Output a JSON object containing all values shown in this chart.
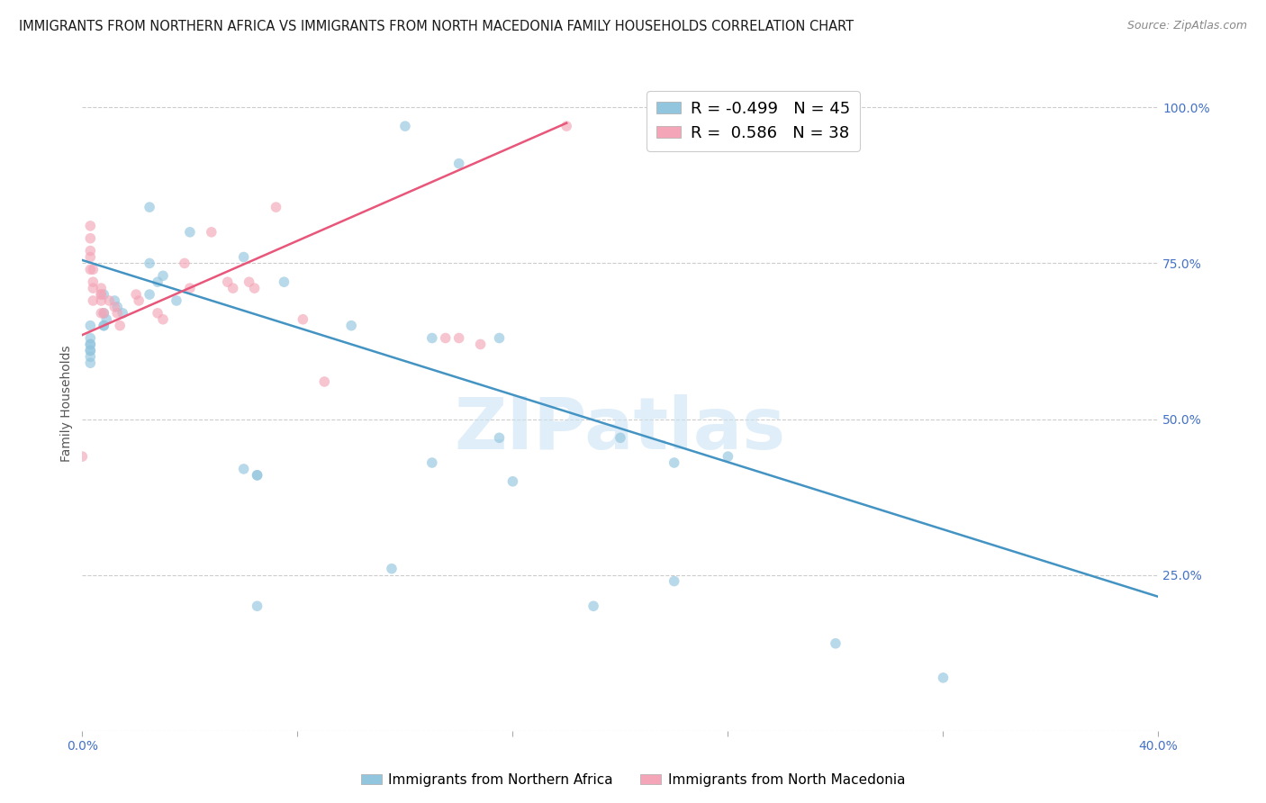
{
  "title": "IMMIGRANTS FROM NORTHERN AFRICA VS IMMIGRANTS FROM NORTH MACEDONIA FAMILY HOUSEHOLDS CORRELATION CHART",
  "source": "Source: ZipAtlas.com",
  "ylabel_label": "Family Households",
  "y_ticks": [
    0.0,
    0.25,
    0.5,
    0.75,
    1.0
  ],
  "y_tick_labels": [
    "",
    "25.0%",
    "50.0%",
    "75.0%",
    "100.0%"
  ],
  "xlim": [
    0.0,
    0.4
  ],
  "ylim": [
    0.0,
    1.05
  ],
  "legend_entry1": "R = -0.499   N = 45",
  "legend_entry2": "R =  0.586   N = 38",
  "scatter_color_blue": "#92c5de",
  "scatter_color_pink": "#f4a6b8",
  "line_color_blue": "#4393c3",
  "line_color_pink": "#e8567a",
  "background_color": "#ffffff",
  "watermark": "ZIPatlas",
  "legend_label1": "Immigrants from Northern Africa",
  "legend_label2": "Immigrants from North Macedonia",
  "blue_scatter_x": [
    0.12,
    0.14,
    0.025,
    0.04,
    0.06,
    0.03,
    0.025,
    0.008,
    0.012,
    0.013,
    0.015,
    0.008,
    0.009,
    0.008,
    0.008,
    0.003,
    0.003,
    0.003,
    0.003,
    0.003,
    0.003,
    0.003,
    0.003,
    0.025,
    0.028,
    0.035,
    0.075,
    0.1,
    0.13,
    0.155,
    0.2,
    0.155,
    0.13,
    0.16,
    0.115,
    0.22,
    0.24,
    0.28,
    0.22,
    0.19,
    0.06,
    0.065,
    0.065,
    0.065,
    0.32
  ],
  "blue_scatter_y": [
    0.97,
    0.91,
    0.84,
    0.8,
    0.76,
    0.73,
    0.7,
    0.7,
    0.69,
    0.68,
    0.67,
    0.67,
    0.66,
    0.65,
    0.65,
    0.65,
    0.63,
    0.62,
    0.62,
    0.61,
    0.61,
    0.6,
    0.59,
    0.75,
    0.72,
    0.69,
    0.72,
    0.65,
    0.63,
    0.63,
    0.47,
    0.47,
    0.43,
    0.4,
    0.26,
    0.43,
    0.44,
    0.14,
    0.24,
    0.2,
    0.42,
    0.41,
    0.41,
    0.2,
    0.085
  ],
  "pink_scatter_x": [
    0.0,
    0.003,
    0.003,
    0.003,
    0.003,
    0.003,
    0.004,
    0.004,
    0.004,
    0.004,
    0.007,
    0.007,
    0.007,
    0.007,
    0.007,
    0.008,
    0.01,
    0.012,
    0.013,
    0.014,
    0.02,
    0.021,
    0.028,
    0.03,
    0.038,
    0.04,
    0.048,
    0.054,
    0.056,
    0.062,
    0.064,
    0.072,
    0.082,
    0.09,
    0.135,
    0.14,
    0.148,
    0.18
  ],
  "pink_scatter_y": [
    0.44,
    0.81,
    0.79,
    0.77,
    0.76,
    0.74,
    0.74,
    0.72,
    0.71,
    0.69,
    0.71,
    0.7,
    0.7,
    0.69,
    0.67,
    0.67,
    0.69,
    0.68,
    0.67,
    0.65,
    0.7,
    0.69,
    0.67,
    0.66,
    0.75,
    0.71,
    0.8,
    0.72,
    0.71,
    0.72,
    0.71,
    0.84,
    0.66,
    0.56,
    0.63,
    0.63,
    0.62,
    0.97
  ],
  "blue_line_x": [
    0.0,
    0.4
  ],
  "blue_line_y": [
    0.755,
    0.215
  ],
  "pink_line_x": [
    0.0,
    0.18
  ],
  "pink_line_y": [
    0.635,
    0.975
  ],
  "title_fontsize": 10.5,
  "axis_label_fontsize": 10,
  "tick_fontsize": 10,
  "scatter_size": 70,
  "scatter_alpha": 0.65,
  "grid_color": "#cccccc",
  "grid_style": "--"
}
